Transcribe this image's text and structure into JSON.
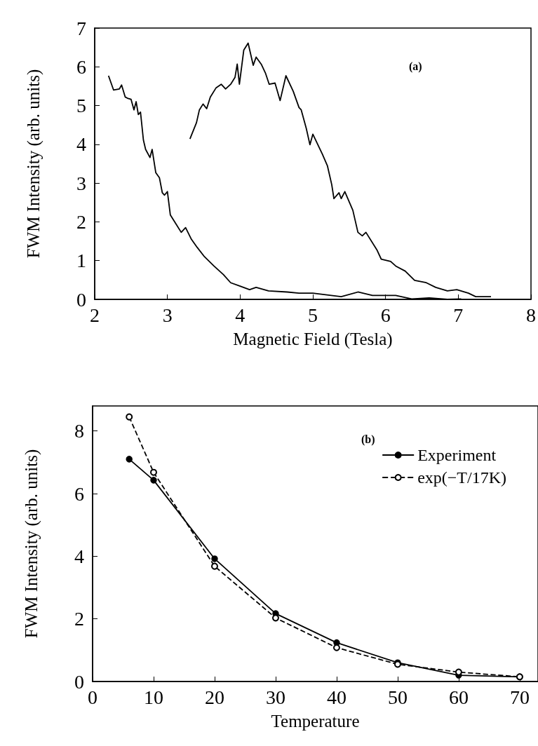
{
  "chart_data": [
    {
      "type": "line",
      "xlabel": "Magnetic Field (Tesla)",
      "ylabel": "FWM Intensity (arb. units)",
      "annotations": [
        "(a)"
      ],
      "xlim": [
        2,
        8
      ],
      "xticks": [
        2,
        3,
        4,
        5,
        6,
        7,
        8
      ],
      "ylim": [
        0,
        7
      ],
      "yticks": [
        0,
        1,
        2,
        3,
        4,
        5,
        6,
        7
      ],
      "grid": false,
      "legend": false,
      "marker": "none",
      "line_style": "solid",
      "series": [
        {
          "color": "#000000",
          "x": [
            2.19,
            2.26,
            2.34,
            2.37,
            2.42,
            2.45,
            2.5,
            2.54,
            2.57,
            2.6,
            2.63,
            2.67,
            2.7,
            2.76,
            2.79,
            2.84,
            2.89,
            2.93,
            2.96,
            3.0,
            3.04,
            3.12,
            3.19,
            3.25,
            3.33,
            3.41,
            3.51,
            3.64,
            3.77,
            3.87,
            4.0,
            4.13,
            4.22,
            4.39,
            4.65,
            4.81,
            5.0,
            5.39,
            5.62,
            5.82,
            6.14,
            6.36,
            6.6,
            6.85,
            7.04
          ],
          "values": [
            5.77,
            5.4,
            5.43,
            5.53,
            5.22,
            5.19,
            5.16,
            4.89,
            5.1,
            4.77,
            4.83,
            4.11,
            3.87,
            3.66,
            3.87,
            3.27,
            3.14,
            2.75,
            2.69,
            2.78,
            2.18,
            1.94,
            1.73,
            1.85,
            1.55,
            1.34,
            1.1,
            0.86,
            0.64,
            0.43,
            0.34,
            0.25,
            0.31,
            0.22,
            0.19,
            0.16,
            0.16,
            0.07,
            0.19,
            0.1,
            0.1,
            0.01,
            0.04,
            0.0,
            0.01
          ]
        },
        {
          "color": "#000000",
          "x": [
            3.31,
            3.4,
            3.44,
            3.49,
            3.54,
            3.59,
            3.67,
            3.74,
            3.8,
            3.87,
            3.93,
            3.96,
            3.99,
            4.05,
            4.11,
            4.18,
            4.22,
            4.29,
            4.35,
            4.4,
            4.48,
            4.55,
            4.63,
            4.73,
            4.81,
            4.84,
            4.91,
            4.96,
            5.0,
            5.13,
            5.2,
            5.26,
            5.29,
            5.36,
            5.39,
            5.44,
            5.55,
            5.62,
            5.68,
            5.73,
            5.88,
            5.94,
            6.07,
            6.14,
            6.27,
            6.4,
            6.56,
            6.69,
            6.85,
            6.98,
            7.14,
            7.24,
            7.45
          ],
          "values": [
            4.14,
            4.56,
            4.89,
            5.04,
            4.92,
            5.22,
            5.46,
            5.55,
            5.43,
            5.55,
            5.73,
            6.07,
            5.55,
            6.43,
            6.61,
            6.04,
            6.25,
            6.07,
            5.83,
            5.55,
            5.58,
            5.13,
            5.77,
            5.37,
            4.95,
            4.89,
            4.41,
            3.99,
            4.26,
            3.75,
            3.45,
            2.96,
            2.6,
            2.75,
            2.6,
            2.78,
            2.3,
            1.73,
            1.64,
            1.73,
            1.28,
            1.04,
            0.98,
            0.86,
            0.73,
            0.49,
            0.43,
            0.31,
            0.22,
            0.25,
            0.16,
            0.07,
            0.07
          ]
        }
      ]
    },
    {
      "type": "line",
      "xlabel": "Temperature",
      "ylabel": "FWM Intensity (arb. units)",
      "annotations": [
        "(b)"
      ],
      "xlim": [
        0,
        73
      ],
      "xticks": [
        0,
        10,
        20,
        30,
        40,
        50,
        60,
        70
      ],
      "ylim": [
        0,
        8.8
      ],
      "yticks": [
        0,
        2,
        4,
        6,
        8
      ],
      "grid": false,
      "legend": "top right",
      "marker": "circle",
      "series": [
        {
          "name": "Experiment",
          "color": "#000000",
          "line_style": "solid",
          "x": [
            6,
            10,
            20,
            30,
            40,
            50,
            60,
            70
          ],
          "values": [
            7.1,
            6.43,
            3.92,
            2.17,
            1.24,
            0.6,
            0.2,
            0.15
          ]
        },
        {
          "name": "exp(−T/17K)",
          "color": "#000000",
          "line_style": "dashed",
          "x": [
            6,
            10,
            20,
            30,
            40,
            50,
            60,
            70
          ],
          "values": [
            8.45,
            6.68,
            3.68,
            2.03,
            1.08,
            0.55,
            0.3,
            0.15
          ]
        }
      ]
    }
  ]
}
